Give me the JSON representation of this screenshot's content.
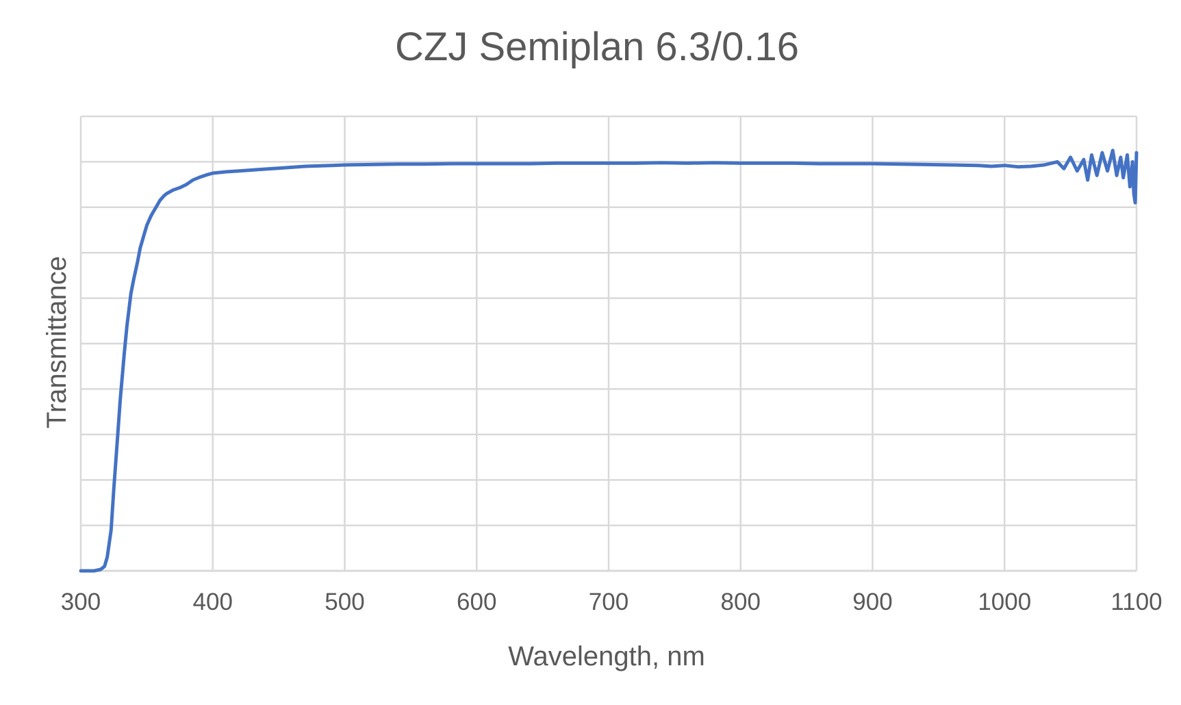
{
  "chart_data": {
    "type": "line",
    "title": "CZJ Semiplan 6.3/0.16",
    "xlabel": "Wavelength, nm",
    "ylabel": "Transmittance",
    "xlim": [
      300,
      1100
    ],
    "ylim": [
      0,
      1
    ],
    "x_ticks": [
      "300",
      "400",
      "500",
      "600",
      "700",
      "800",
      "900",
      "1000",
      "1100"
    ],
    "y_gridlines": 10,
    "y_tick_labels_shown": false,
    "grid": true,
    "legend": "none",
    "series": [
      {
        "color": "#4472C4",
        "x": [
          300,
          310,
          315,
          318,
          320,
          323,
          325,
          328,
          330,
          333,
          335,
          338,
          340,
          343,
          345,
          348,
          350,
          353,
          355,
          358,
          360,
          363,
          365,
          370,
          375,
          380,
          385,
          390,
          395,
          400,
          410,
          420,
          430,
          440,
          450,
          460,
          470,
          480,
          490,
          500,
          520,
          540,
          560,
          580,
          600,
          620,
          640,
          660,
          680,
          700,
          720,
          740,
          760,
          780,
          800,
          820,
          840,
          860,
          880,
          900,
          920,
          940,
          960,
          980,
          990,
          1000,
          1010,
          1020,
          1030,
          1040,
          1045,
          1050,
          1055,
          1060,
          1063,
          1066,
          1070,
          1074,
          1078,
          1082,
          1085,
          1088,
          1090,
          1093,
          1095,
          1097,
          1098,
          1099,
          1100
        ],
        "y": [
          0.0,
          0.0,
          0.003,
          0.01,
          0.03,
          0.09,
          0.18,
          0.3,
          0.38,
          0.48,
          0.54,
          0.61,
          0.64,
          0.68,
          0.71,
          0.74,
          0.76,
          0.78,
          0.79,
          0.805,
          0.815,
          0.825,
          0.83,
          0.838,
          0.843,
          0.85,
          0.86,
          0.866,
          0.871,
          0.875,
          0.878,
          0.88,
          0.882,
          0.884,
          0.886,
          0.888,
          0.89,
          0.891,
          0.892,
          0.893,
          0.894,
          0.895,
          0.895,
          0.896,
          0.896,
          0.896,
          0.896,
          0.897,
          0.897,
          0.897,
          0.897,
          0.898,
          0.897,
          0.898,
          0.897,
          0.897,
          0.897,
          0.896,
          0.896,
          0.896,
          0.895,
          0.894,
          0.893,
          0.892,
          0.89,
          0.892,
          0.889,
          0.89,
          0.893,
          0.9,
          0.885,
          0.91,
          0.88,
          0.905,
          0.86,
          0.915,
          0.87,
          0.92,
          0.88,
          0.925,
          0.87,
          0.91,
          0.865,
          0.915,
          0.845,
          0.9,
          0.83,
          0.81,
          0.92
        ]
      }
    ]
  }
}
